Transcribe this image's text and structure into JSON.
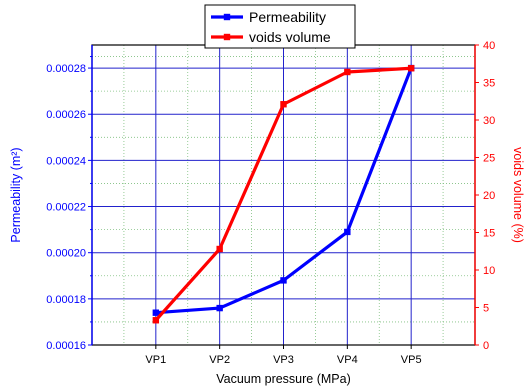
{
  "chart_data": {
    "type": "line",
    "categories": [
      "VP1",
      "VP2",
      "VP3",
      "VP4",
      "VP5"
    ],
    "xlabel": "Vacuum pressure (MPa)",
    "ylabel_left": "Permeability (m²)",
    "ylabel_right": "voids volume (%)",
    "ylim_left": [
      0.00016,
      0.00029
    ],
    "ylim_right": [
      0,
      40
    ],
    "yticks_left": [
      "0.00016",
      "0.00018",
      "0.00020",
      "0.00022",
      "0.00024",
      "0.00026",
      "0.00028"
    ],
    "yticks_right": [
      "0",
      "5",
      "10",
      "15",
      "20",
      "25",
      "30",
      "35",
      "40"
    ],
    "grid": true,
    "legend_position": "top-center",
    "series": [
      {
        "name": "Permeability",
        "axis": "left",
        "color": "#0000ff",
        "values": [
          0.000174,
          0.000176,
          0.000188,
          0.000209,
          0.00028
        ]
      },
      {
        "name": "voids volume",
        "axis": "right",
        "color": "#ff0000",
        "values": [
          3.3,
          12.8,
          32.1,
          36.4,
          36.9
        ]
      }
    ]
  }
}
